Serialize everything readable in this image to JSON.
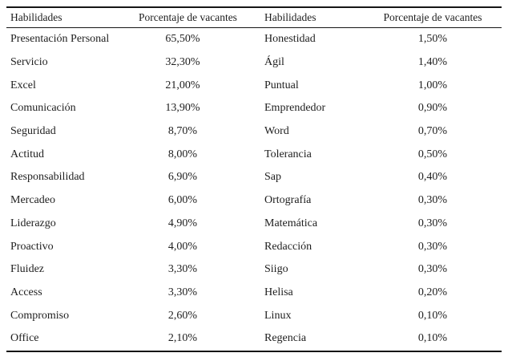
{
  "page": {
    "background": "#ffffff",
    "text_color": "#1e1e1e",
    "rule_color": "#161616"
  },
  "table": {
    "columns": [
      "Habilidades",
      "Porcentaje de vacantes",
      "Habilidades",
      "Porcentaje de vacantes"
    ],
    "rows": [
      [
        "Presentación Personal",
        "65,50%",
        "Honestidad",
        "1,50%"
      ],
      [
        "Servicio",
        "32,30%",
        "Ágil",
        "1,40%"
      ],
      [
        "Excel",
        "21,00%",
        "Puntual",
        "1,00%"
      ],
      [
        "Comunicación",
        "13,90%",
        "Emprendedor",
        "0,90%"
      ],
      [
        "Seguridad",
        "8,70%",
        "Word",
        "0,70%"
      ],
      [
        "Actitud",
        "8,00%",
        "Tolerancia",
        "0,50%"
      ],
      [
        "Responsabilidad",
        "6,90%",
        "Sap",
        "0,40%"
      ],
      [
        "Mercadeo",
        "6,00%",
        "Ortografía",
        "0,30%"
      ],
      [
        "Liderazgo",
        "4,90%",
        "Matemática",
        "0,30%"
      ],
      [
        "Proactivo",
        "4,00%",
        "Redacción",
        "0,30%"
      ],
      [
        "Fluidez",
        "3,30%",
        "Siigo",
        "0,30%"
      ],
      [
        "Access",
        "3,30%",
        "Helisa",
        "0,20%"
      ],
      [
        "Compromiso",
        "2,60%",
        "Linux",
        "0,10%"
      ],
      [
        "Office",
        "2,10%",
        "Regencia",
        "0,10%"
      ]
    ]
  }
}
